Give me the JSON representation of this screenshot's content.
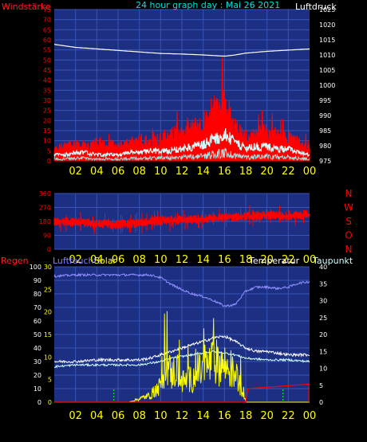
{
  "header": {
    "title": "24 hour graph day : Mai 26 2021",
    "left_label": "Windstärke",
    "right_label": "Luftdruck"
  },
  "colors": {
    "bg": "#000000",
    "plot_bg": "#1c2f82",
    "grid": "#3a55b5",
    "red": "#ff0000",
    "white": "#ffffff",
    "cyan": "#cfffff",
    "yellow": "#ffff00",
    "green": "#00ff00",
    "lavender": "#9090ff",
    "title": "#00e0e0"
  },
  "panel2": {
    "compass": [
      "N",
      "W",
      "S",
      "O",
      "N"
    ]
  },
  "panel3": {
    "left_label_regen": "Regen",
    "left_label_feuchte": "Luftfeuchte",
    "solar_label": "Solar",
    "temp_label": "Temperatur",
    "dew_label": "Taupunkt"
  },
  "chart_data": [
    {
      "type": "line",
      "title": "24 hour graph day : Mai 26 2021",
      "x_ticks": [
        "02",
        "04",
        "06",
        "08",
        "10",
        "12",
        "14",
        "16",
        "18",
        "20",
        "22",
        "00"
      ],
      "y_left": {
        "label": "Windstärke",
        "ticks": [
          0,
          5,
          10,
          15,
          20,
          25,
          30,
          35,
          40,
          45,
          50,
          55,
          60,
          65,
          70,
          75
        ],
        "ylim": [
          0,
          75
        ]
      },
      "y_right": {
        "label": "Luftdruck",
        "ticks": [
          975,
          980,
          985,
          990,
          995,
          1000,
          1005,
          1010,
          1015,
          1020,
          1025
        ],
        "ylim": [
          975,
          1025
        ]
      },
      "series": [
        {
          "axis": "right",
          "hours": [
            0,
            2,
            4,
            6,
            8,
            10,
            12,
            14,
            15,
            16,
            17,
            18,
            20,
            22,
            24
          ],
          "values": [
            1013.5,
            1012.5,
            1012,
            1011.5,
            1011,
            1010.5,
            1010.3,
            1010,
            1009.8,
            1009.6,
            1010,
            1010.6,
            1011.2,
            1011.6,
            1012
          ]
        },
        {
          "axis": "left",
          "hours": [
            0,
            1,
            2,
            3,
            4,
            5,
            6,
            7,
            8,
            9,
            10,
            11,
            12,
            13,
            14,
            15,
            16,
            17,
            18,
            19,
            20,
            21,
            22,
            23,
            24
          ],
          "values": [
            6,
            8,
            9,
            8,
            9,
            9,
            8,
            9,
            11,
            11,
            12,
            14,
            15,
            17,
            20,
            27,
            30,
            18,
            13,
            14,
            15,
            13,
            12,
            10,
            8
          ]
        },
        {
          "axis": "left",
          "hours": [
            0,
            1,
            2,
            3,
            4,
            5,
            6,
            7,
            8,
            9,
            10,
            11,
            12,
            13,
            14,
            15,
            16,
            17,
            18,
            19,
            20,
            21,
            22,
            23,
            24
          ],
          "values": [
            3,
            3,
            4,
            4,
            3,
            3,
            3,
            4,
            4,
            5,
            5,
            5,
            6,
            7,
            8,
            11,
            13,
            9,
            6,
            7,
            7,
            6,
            6,
            4,
            3
          ]
        }
      ]
    },
    {
      "type": "scatter",
      "x_ticks": [
        "02",
        "04",
        "06",
        "08",
        "10",
        "12",
        "14",
        "16",
        "18",
        "20",
        "22",
        "00"
      ],
      "y_left": {
        "ticks": [
          0,
          90,
          180,
          270,
          360
        ],
        "ylim": [
          0,
          360
        ]
      },
      "series": [
        {
          "hours": [
            0,
            2,
            4,
            6,
            8,
            10,
            12,
            14,
            16,
            18,
            20,
            22,
            24
          ],
          "values": [
            180,
            175,
            165,
            160,
            170,
            185,
            190,
            195,
            205,
            215,
            220,
            215,
            225
          ]
        }
      ]
    },
    {
      "type": "line",
      "x_ticks": [
        "02",
        "04",
        "06",
        "08",
        "10",
        "12",
        "14",
        "16",
        "18",
        "20",
        "22",
        "00"
      ],
      "y_left": {
        "ticks": [
          0,
          10,
          20,
          30,
          40,
          50,
          60,
          70,
          80,
          90,
          100
        ],
        "ylim": [
          0,
          100
        ]
      },
      "y_mid": {
        "ticks": [
          0,
          5,
          10,
          15,
          20,
          25,
          30
        ],
        "ylim": [
          0,
          30
        ]
      },
      "y_right": {
        "ticks": [
          0,
          5,
          10,
          15,
          20,
          25,
          30,
          35,
          40
        ],
        "ylim": [
          0,
          40
        ]
      },
      "series": [
        {
          "name": "Luftfeuchte",
          "axis": "left",
          "hours": [
            0,
            2,
            4,
            6,
            8,
            9,
            10,
            11,
            12,
            13,
            14,
            15,
            16,
            17,
            18,
            19,
            20,
            21,
            22,
            23,
            24
          ],
          "values": [
            93,
            94,
            94,
            94,
            94,
            94,
            92,
            87,
            83,
            80,
            78,
            75,
            71,
            72,
            82,
            85,
            85,
            84,
            85,
            88,
            89
          ]
        },
        {
          "name": "Temperatur",
          "axis": "right",
          "hours": [
            0,
            2,
            4,
            6,
            8,
            9,
            10,
            11,
            12,
            13,
            14,
            15,
            16,
            17,
            18,
            19,
            20,
            21,
            22,
            23,
            24
          ],
          "values": [
            12,
            12,
            12.5,
            12.5,
            12.5,
            13,
            14,
            15,
            16,
            17,
            18,
            19,
            19.5,
            18,
            16,
            15,
            15,
            14.5,
            14,
            14,
            14
          ]
        },
        {
          "name": "Taupunkt",
          "axis": "right",
          "hours": [
            0,
            2,
            4,
            6,
            8,
            9,
            10,
            11,
            12,
            13,
            14,
            15,
            16,
            17,
            18,
            20,
            22,
            24
          ],
          "values": [
            10.5,
            11,
            11,
            11,
            11,
            11.5,
            12,
            13,
            13.5,
            14,
            14.5,
            15,
            14.5,
            14,
            13,
            12.5,
            12.5,
            12
          ]
        },
        {
          "name": "Solar",
          "axis": "mid",
          "hours": [
            0,
            7,
            8,
            9,
            10,
            10.5,
            11,
            11.5,
            12,
            13,
            14,
            15,
            16,
            17,
            17.8,
            18,
            24
          ],
          "values": [
            0,
            0,
            1,
            2,
            5,
            12,
            8,
            10,
            6,
            7,
            10,
            12,
            11,
            8,
            3,
            0,
            0
          ]
        },
        {
          "name": "Regen",
          "axis": "mid",
          "hours": [
            0,
            18,
            18.2,
            24
          ],
          "values": [
            0,
            0,
            3,
            4
          ]
        }
      ]
    }
  ]
}
